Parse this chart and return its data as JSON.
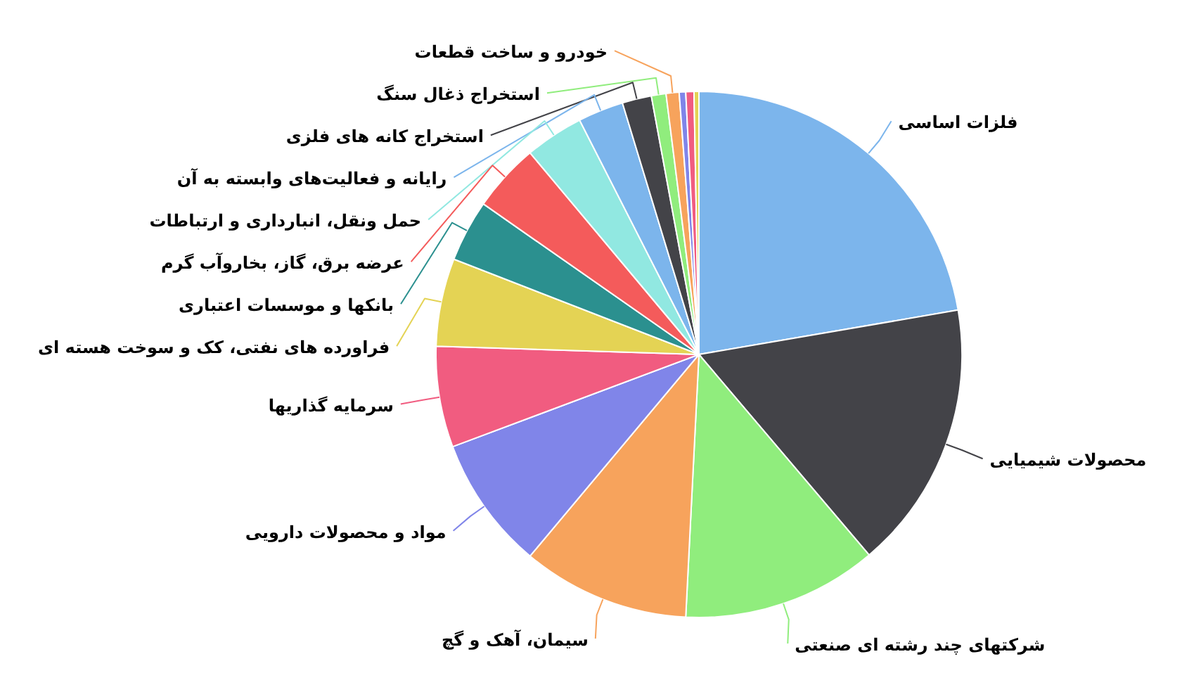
{
  "chart_data": {
    "type": "pie",
    "categories": [
      "فلزات اساسی",
      "محصولات شیمیایی",
      "شرکتهای چند رشته ای صنعتی",
      "سیمان، آهک و گچ",
      "مواد و محصولات دارویی",
      "سرمایه گذاریها",
      "فراورده های نفتی، کک و سوخت هسته ای",
      "بانکها و موسسات اعتباری",
      "عرضه برق، گاز، بخاروآب گرم",
      "حمل ونقل، انبارداری و ارتباطات",
      "رایانه و فعالیت‌های وابسته به آن",
      "استخراج کانه های فلزی",
      "استخراج ذغال سنگ",
      "خودرو و ساخت قطعات",
      null,
      null,
      null
    ],
    "values": [
      22.3,
      16.5,
      12.0,
      10.3,
      8.2,
      6.2,
      5.4,
      3.8,
      4.2,
      3.6,
      2.8,
      1.8,
      0.9,
      0.8,
      0.4,
      0.5,
      0.3
    ],
    "colors": [
      "#7cb5ec",
      "#434348",
      "#90ed7d",
      "#f7a35c",
      "#8085e9",
      "#f15c80",
      "#e4d354",
      "#2b908f",
      "#f45b5b",
      "#91e8e1",
      "#7cb5ec",
      "#434348",
      "#90ed7d",
      "#f7a35c",
      "#8085e9",
      "#f15c80",
      "#e4d354"
    ]
  }
}
